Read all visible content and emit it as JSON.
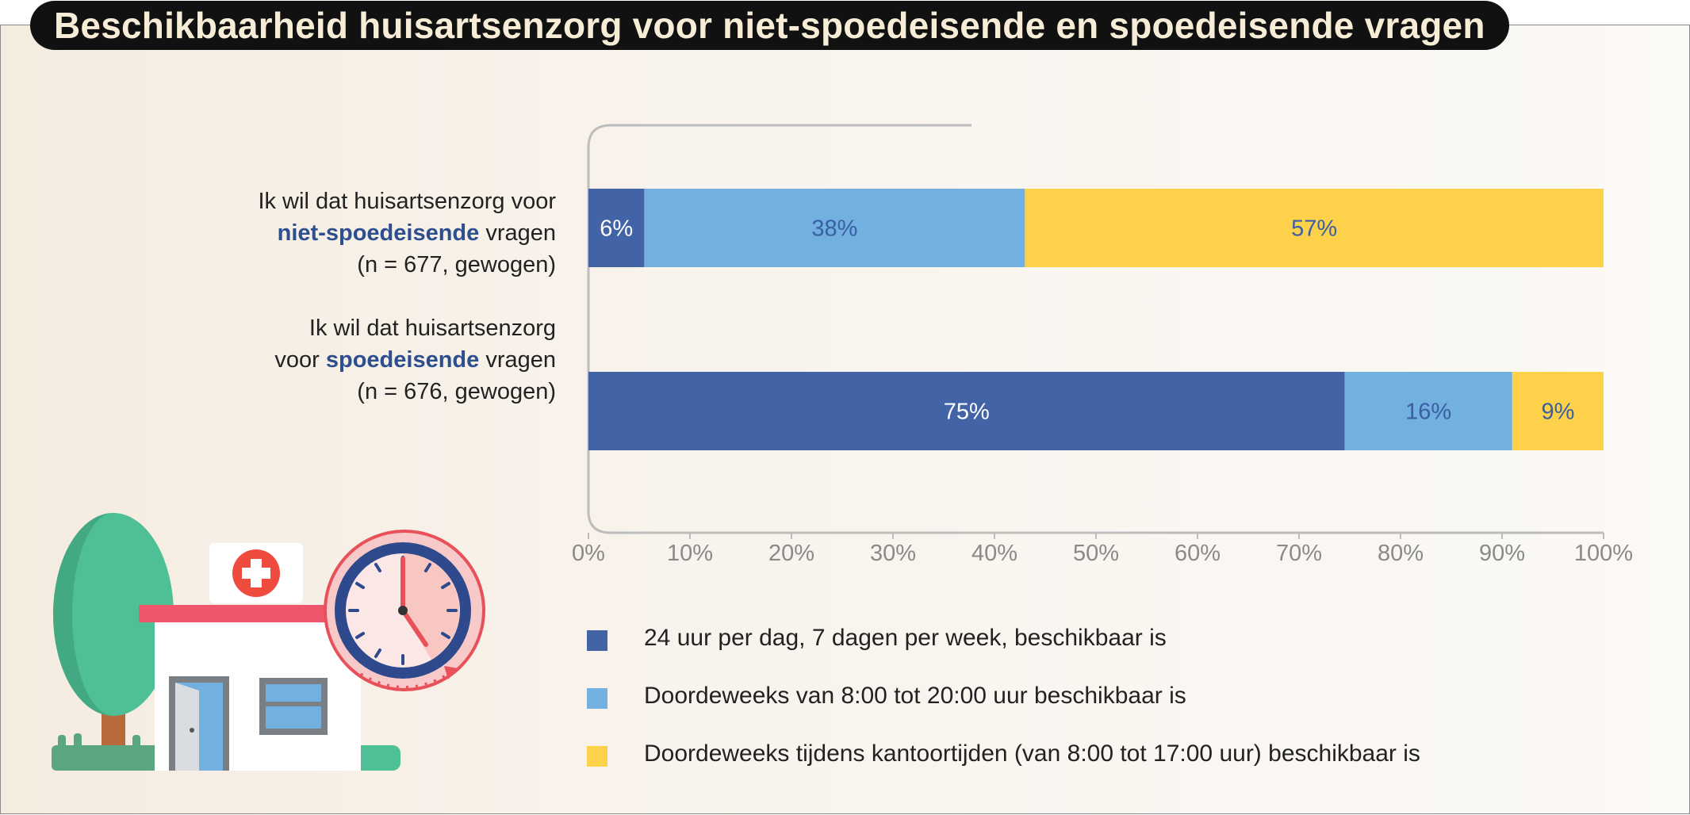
{
  "title": "Beschikbaarheid huisartsenzorg voor niet-spoedeisende en spoedeisende vragen",
  "colors": {
    "dark_blue": "#4263a6",
    "light_blue": "#72b0e0",
    "yellow": "#fdd24a",
    "emphasis": "#2d4e8f"
  },
  "questions": [
    {
      "line1": "Ik wil dat huisartsenzorg voor",
      "emphasis": "niet-spoedeisende",
      "suffix": " vragen",
      "sample": "(n = 677, gewogen)"
    },
    {
      "line1a": "Ik wil dat huisartsenzorg",
      "line2_prefix": "voor ",
      "emphasis": "spoedeisende",
      "suffix": " vragen",
      "sample": "(n = 676, gewogen)"
    }
  ],
  "chart_data": {
    "type": "bar",
    "orientation": "horizontal",
    "stacked": true,
    "title": "Beschikbaarheid huisartsenzorg voor niet-spoedeisende en spoedeisende vragen",
    "categories": [
      "Ik wil dat huisartsenzorg voor niet-spoedeisende vragen (n = 677, gewogen)",
      "Ik wil dat huisartsenzorg voor spoedeisende vragen (n = 676, gewogen)"
    ],
    "series": [
      {
        "name": "24 uur per dag, 7 dagen per week, beschikbaar is",
        "color": "#4263a6",
        "label_color": "#ffffff",
        "values": [
          5.5,
          74.5
        ],
        "labels": [
          "6%",
          "75%"
        ]
      },
      {
        "name": "Doordeweeks van 8:00 tot 20:00 uur beschikbaar is",
        "color": "#72b0e0",
        "label_color": "#3a5fa3",
        "values": [
          37.5,
          16.5
        ],
        "labels": [
          "38%",
          "16%"
        ]
      },
      {
        "name": "Doordeweeks tijdens kantoortijden (van 8:00 tot 17:00 uur) beschikbaar is",
        "color": "#fdd24a",
        "label_color": "#3a5fa3",
        "values": [
          57,
          9
        ],
        "labels": [
          "57%",
          "9%"
        ]
      }
    ],
    "xlim": [
      0,
      100
    ],
    "xticks": [
      "0%",
      "10%",
      "20%",
      "30%",
      "40%",
      "50%",
      "60%",
      "70%",
      "80%",
      "90%",
      "100%"
    ],
    "xlabel": "",
    "ylabel": "",
    "grid": false,
    "legend": "bottom"
  }
}
